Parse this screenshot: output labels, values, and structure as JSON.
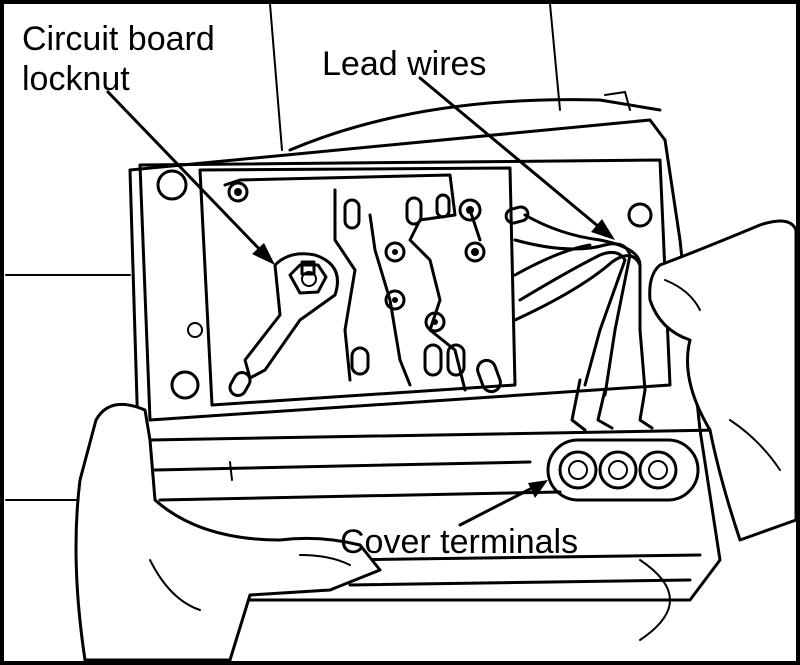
{
  "labels": {
    "circuit_board_locknut_line1": "Circuit board",
    "circuit_board_locknut_line2": "locknut",
    "lead_wires": "Lead wires",
    "cover_terminals": "Cover terminals"
  },
  "colors": {
    "ink": "#000000",
    "paper": "#ffffff"
  }
}
